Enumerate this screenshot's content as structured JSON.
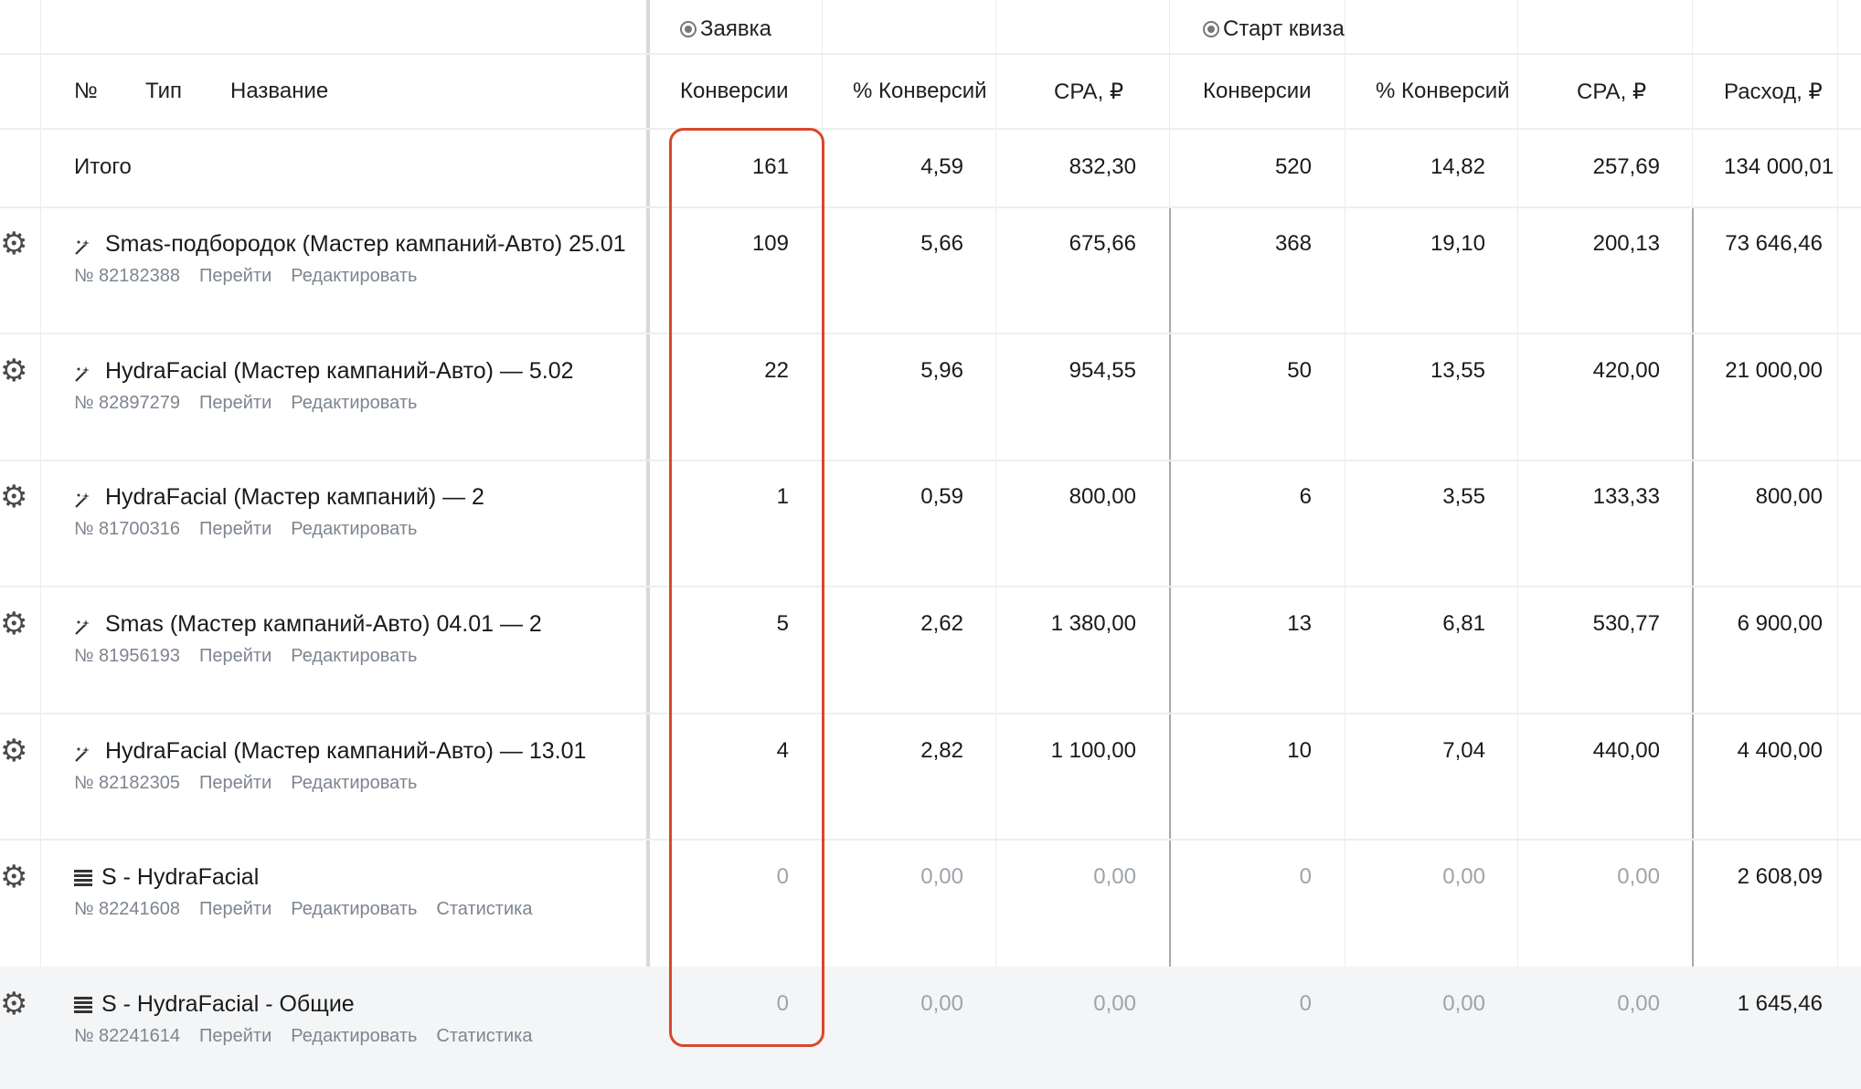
{
  "groups": {
    "zayavka": "Заявка",
    "start_quiz": "Старт квиза"
  },
  "headers": {
    "num": "№",
    "type": "Тип",
    "name": "Название",
    "conv1": "Конверсии",
    "pct1": "% Конверсий",
    "cpa1": "CPA, ₽",
    "conv2": "Конверсии",
    "pct2": "% Конверсий",
    "cpa2": "CPA, ₽",
    "spend": "Расход, ₽"
  },
  "total": {
    "label": "Итого",
    "conv1": "161",
    "pct1": "4,59",
    "cpa1": "832,30",
    "conv2": "520",
    "pct2": "14,82",
    "cpa2": "257,69",
    "spend": "134 000,01"
  },
  "rows": [
    {
      "icon": "wand-icon",
      "name": "Smas-подбородок (Мастер кампаний-Авто) 25.01",
      "id": "№ 82182388",
      "links": [
        "Перейти",
        "Редактировать"
      ],
      "conv1": "109",
      "pct1": "5,66",
      "cpa1": "675,66",
      "conv2": "368",
      "pct2": "19,10",
      "cpa2": "200,13",
      "spend": "73 646,46"
    },
    {
      "icon": "wand-icon",
      "name": "HydraFacial (Мастер кампаний-Авто) — 5.02",
      "id": "№ 82897279",
      "links": [
        "Перейти",
        "Редактировать"
      ],
      "conv1": "22",
      "pct1": "5,96",
      "cpa1": "954,55",
      "conv2": "50",
      "pct2": "13,55",
      "cpa2": "420,00",
      "spend": "21 000,00"
    },
    {
      "icon": "wand-icon",
      "name": "HydraFacial (Мастер кампаний) — 2",
      "id": "№ 81700316",
      "links": [
        "Перейти",
        "Редактировать"
      ],
      "conv1": "1",
      "pct1": "0,59",
      "cpa1": "800,00",
      "conv2": "6",
      "pct2": "3,55",
      "cpa2": "133,33",
      "spend": "800,00"
    },
    {
      "icon": "wand-icon",
      "name": "Smas (Мастер кампаний-Авто) 04.01 — 2",
      "id": "№ 81956193",
      "links": [
        "Перейти",
        "Редактировать"
      ],
      "conv1": "5",
      "pct1": "2,62",
      "cpa1": "1 380,00",
      "conv2": "13",
      "pct2": "6,81",
      "cpa2": "530,77",
      "spend": "6 900,00"
    },
    {
      "icon": "wand-icon",
      "name": "HydraFacial (Мастер кампаний-Авто) — 13.01",
      "id": "№ 82182305",
      "links": [
        "Перейти",
        "Редактировать"
      ],
      "conv1": "4",
      "pct1": "2,82",
      "cpa1": "1 100,00",
      "conv2": "10",
      "pct2": "7,04",
      "cpa2": "440,00",
      "spend": "4 400,00"
    },
    {
      "icon": "list-icon",
      "name": "S - HydraFacial",
      "id": "№ 82241608",
      "links": [
        "Перейти",
        "Редактировать",
        "Статистика"
      ],
      "conv1": "0",
      "pct1": "0,00",
      "cpa1": "0,00",
      "conv2": "0",
      "pct2": "0,00",
      "cpa2": "0,00",
      "spend": "2 608,09"
    },
    {
      "icon": "list-icon",
      "name": "S - HydraFacial - Общие",
      "id": "№ 82241614",
      "links": [
        "Перейти",
        "Редактировать",
        "Статистика"
      ],
      "conv1": "0",
      "pct1": "0,00",
      "cpa1": "0,00",
      "conv2": "0",
      "pct2": "0,00",
      "cpa2": "0,00",
      "spend": "1 645,46"
    }
  ],
  "colors": {
    "highlight": "#d9472b",
    "zero_value": "#9ea3aa",
    "link": "#7d8590"
  }
}
